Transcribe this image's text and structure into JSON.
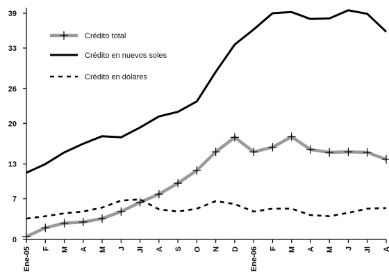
{
  "chart_data": {
    "type": "line",
    "title": "",
    "xlabel": "",
    "ylabel": "",
    "categories": [
      "Ene-05",
      "F",
      "M",
      "A",
      "M",
      "J",
      "Jl",
      "A",
      "S",
      "O",
      "N",
      "D",
      "Ene-06",
      "F",
      "M",
      "A",
      "M",
      "J",
      "Jl",
      "A"
    ],
    "yticks": [
      0,
      7,
      13,
      20,
      26,
      33,
      39
    ],
    "ylim": [
      0,
      39
    ],
    "grid": false,
    "legend_position": "top-left",
    "series": [
      {
        "name": "Crédito total",
        "style": "gray-with-plus-markers",
        "color": "#9a9a9a",
        "values": [
          0.5,
          2.0,
          2.8,
          3.0,
          3.6,
          4.8,
          6.4,
          7.8,
          9.7,
          11.9,
          15.1,
          17.6,
          15.1,
          15.9,
          17.7,
          15.5,
          15.0,
          15.1,
          15.0,
          13.8
        ]
      },
      {
        "name": "Crédito en nuevos soles",
        "style": "solid-black",
        "color": "#000000",
        "values": [
          11.5,
          13.0,
          15.0,
          16.5,
          17.8,
          17.6,
          19.3,
          21.2,
          22.0,
          23.8,
          28.9,
          33.6,
          36.2,
          39.0,
          39.2,
          38.0,
          38.1,
          39.5,
          38.9,
          35.8
        ]
      },
      {
        "name": "Crédito en dólares",
        "style": "dashed-black",
        "color": "#000000",
        "values": [
          3.6,
          4.0,
          4.5,
          4.8,
          5.5,
          6.7,
          6.9,
          5.2,
          4.8,
          5.3,
          6.6,
          6.1,
          4.8,
          5.3,
          5.3,
          4.2,
          4.0,
          4.6,
          5.3,
          5.4
        ]
      }
    ]
  }
}
